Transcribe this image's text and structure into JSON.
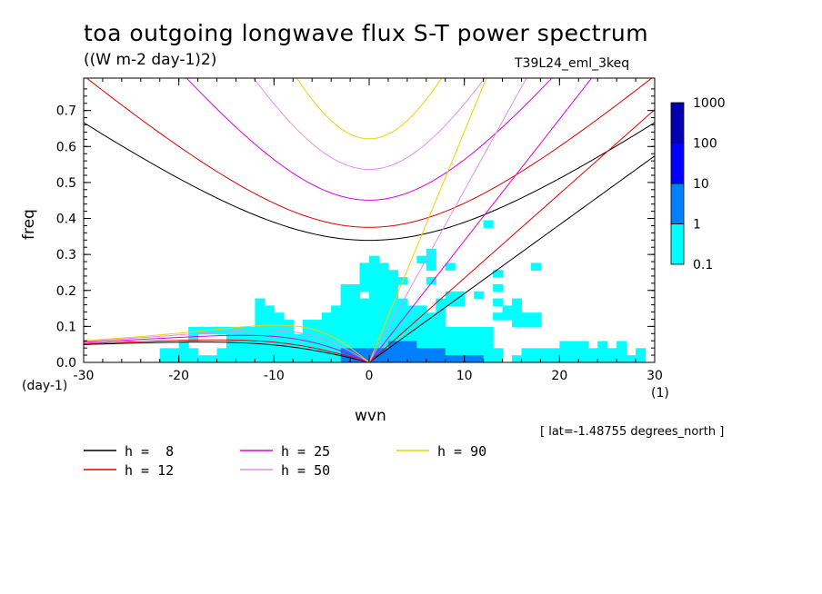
{
  "title": "toa outgoing longwave flux S-T power spectrum",
  "units_label": "((W m-2 day-1)2)",
  "run_label": "T39L24_eml_3keq",
  "lat_label": "[ lat=-1.48755 degrees_north ]",
  "chart_data": {
    "type": "heatmap",
    "xlabel": "wvn",
    "ylabel": "freq",
    "x_unit": "(1)",
    "y_unit": "(day-1)",
    "xlim": [
      -30,
      30
    ],
    "ylim": [
      0,
      0.79
    ],
    "x_ticks": [
      "-30",
      "-20",
      "-10",
      "0",
      "10",
      "20",
      "30"
    ],
    "y_ticks": [
      "0.0",
      "0.1",
      "0.2",
      "0.3",
      "0.4",
      "0.5",
      "0.6",
      "0.7"
    ],
    "colorbar": {
      "levels": [
        "0.1",
        "1",
        "10",
        "100",
        "1000"
      ],
      "colors": [
        "#00ffff",
        "#0080ff",
        "#0000ff",
        "#0000b0"
      ]
    },
    "dispersion_curves": [
      {
        "label": "h =  8",
        "h": 8,
        "color": "#000000"
      },
      {
        "label": "h = 12",
        "h": 12,
        "color": "#e00000"
      },
      {
        "label": "h = 25",
        "h": 25,
        "color": "#e000e0"
      },
      {
        "label": "h = 50",
        "h": 50,
        "color": "#e090e0"
      },
      {
        "label": "h = 90",
        "h": 90,
        "color": "#f0d000"
      }
    ]
  }
}
